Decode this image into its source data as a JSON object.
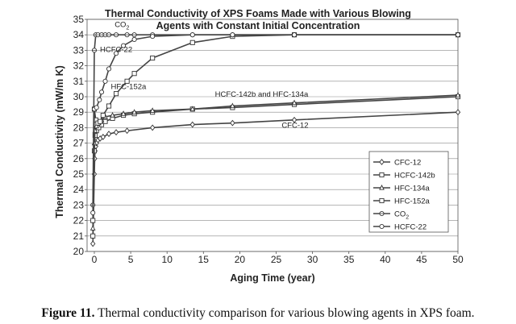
{
  "chart_data": {
    "type": "line",
    "title_line1": "Thermal Conductivity of XPS Foams Made with Various Blowing",
    "title_line2": "Agents with Constant Initial Concentration",
    "xlabel": "Aging Time (year)",
    "ylabel": "Thermal Conductivity (mW/m K)",
    "xlim": [
      -1,
      50
    ],
    "ylim": [
      20,
      35
    ],
    "xticks": [
      0,
      5,
      10,
      15,
      20,
      25,
      30,
      35,
      40,
      45,
      50
    ],
    "yticks": [
      20,
      21,
      22,
      23,
      24,
      25,
      26,
      27,
      28,
      29,
      30,
      31,
      32,
      33,
      34,
      35
    ],
    "grid": "horizontal",
    "legend_position": "lower-right",
    "series": [
      {
        "name": "CFC-12",
        "marker": "diamond",
        "x": [
          -0.2,
          0,
          0.05,
          0.1,
          0.2,
          0.3,
          0.5,
          0.8,
          1.2,
          2,
          3,
          4.5,
          8,
          13.5,
          19,
          27.5,
          50
        ],
        "y": [
          20.5,
          25,
          26,
          26.5,
          26.8,
          27,
          27.2,
          27.3,
          27.4,
          27.6,
          27.7,
          27.8,
          28,
          28.2,
          28.3,
          28.5,
          29
        ]
      },
      {
        "name": "HCFC-142b",
        "marker": "square",
        "x": [
          -0.2,
          0,
          0.1,
          0.3,
          0.6,
          1,
          1.5,
          2.5,
          4,
          5.5,
          8,
          13.5,
          19,
          27.5,
          50
        ],
        "y": [
          21,
          26.5,
          27.5,
          27.8,
          28,
          28.2,
          28.4,
          28.6,
          28.8,
          28.9,
          29,
          29.2,
          29.3,
          29.5,
          30
        ]
      },
      {
        "name": "HFC-134a",
        "marker": "triangle",
        "x": [
          -0.2,
          0,
          0.1,
          0.3,
          0.6,
          1,
          1.5,
          2.5,
          4,
          5.5,
          8,
          13.5,
          19,
          27.5,
          50
        ],
        "y": [
          21.5,
          27,
          27.8,
          28.1,
          28.3,
          28.5,
          28.7,
          28.8,
          28.9,
          29,
          29.1,
          29.2,
          29.4,
          29.6,
          30.1
        ]
      },
      {
        "name": "HFC-152a",
        "marker": "square",
        "x": [
          -0.2,
          0,
          0.2,
          0.5,
          0.8,
          1.2,
          2,
          3,
          4.5,
          5.5,
          8,
          13.5,
          19,
          27.5,
          50
        ],
        "y": [
          22,
          29.2,
          28.5,
          28.3,
          28.4,
          28.8,
          29.4,
          30.2,
          31,
          31.5,
          32.5,
          33.5,
          33.9,
          34,
          34
        ]
      },
      {
        "name": "CO2",
        "marker": "circle-cross",
        "x": [
          -0.2,
          0,
          0.2,
          0.5,
          1,
          1.5,
          2,
          3,
          4.5,
          5.5,
          8,
          13.5,
          19,
          27.5,
          50
        ],
        "y": [
          23,
          33,
          34,
          34,
          34,
          34,
          34,
          34,
          34,
          34,
          34,
          34,
          34,
          34,
          34
        ]
      },
      {
        "name": "HCFC-22",
        "marker": "circle",
        "x": [
          -0.2,
          0,
          0.3,
          0.7,
          1,
          1.5,
          2,
          3,
          4,
          5.5,
          8,
          13.5,
          19,
          27.5,
          50
        ],
        "y": [
          22.5,
          29.2,
          29.3,
          29.8,
          30.3,
          31,
          31.8,
          32.8,
          33.3,
          33.7,
          33.9,
          34,
          34,
          34,
          34
        ]
      }
    ],
    "annotations": [
      {
        "text": "CO",
        "sub": "2",
        "x": 3.8,
        "y": 34.5
      },
      {
        "text": "HCFC-22",
        "x": 3.0,
        "y": 32.9
      },
      {
        "text": "HFC-152a",
        "x": 4.7,
        "y": 30.5
      },
      {
        "text": "HCFC-142b and HFC-134a",
        "x": 23.0,
        "y": 30.0
      },
      {
        "text": "CFC-12",
        "x": 27.6,
        "y": 28.0
      }
    ],
    "legend": [
      {
        "name": "CFC-12",
        "marker": "diamond"
      },
      {
        "name": "HCFC-142b",
        "marker": "square"
      },
      {
        "name": "HFC-134a",
        "marker": "triangle"
      },
      {
        "name": "HFC-152a",
        "marker": "square"
      },
      {
        "name": "CO",
        "sub": "2",
        "marker": "circle-cross"
      },
      {
        "name": "HCFC-22",
        "marker": "circle"
      }
    ]
  },
  "caption": {
    "label": "Figure 11.",
    "text": "Thermal conductivity comparison for various blowing agents in XPS foam."
  }
}
